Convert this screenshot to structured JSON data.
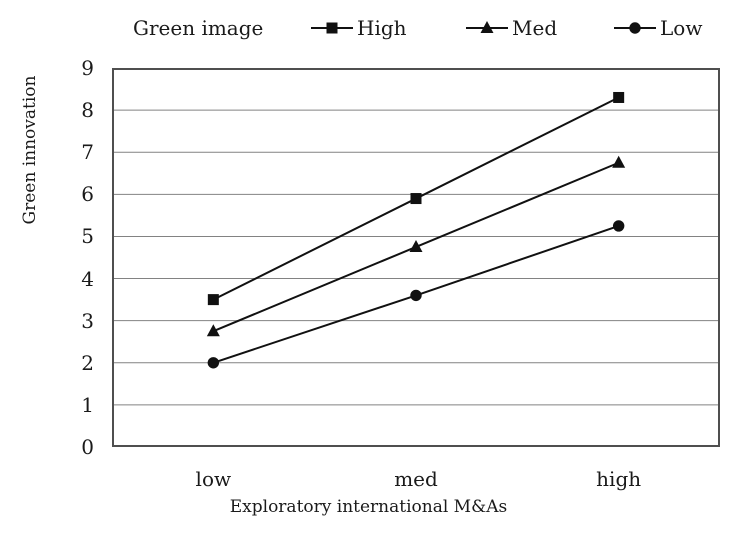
{
  "chart_data": {
    "type": "line",
    "title": "Green image",
    "categories": [
      "low",
      "med",
      "high"
    ],
    "series": [
      {
        "name": "High",
        "marker": "square",
        "values": [
          3.5,
          5.9,
          8.3
        ]
      },
      {
        "name": "Med",
        "marker": "triangle",
        "values": [
          2.75,
          4.75,
          6.75
        ]
      },
      {
        "name": "Low",
        "marker": "circle",
        "values": [
          2.0,
          3.6,
          5.25
        ]
      }
    ],
    "xlabel": "Exploratory international M&As",
    "ylabel": "Green innovation",
    "ylim": [
      0,
      9
    ],
    "y_ticks": [
      0,
      1,
      2,
      3,
      4,
      5,
      6,
      7,
      8,
      9
    ],
    "grid": "horizontal",
    "legend_position": "top",
    "colors": {
      "line": "#111111",
      "grid": "#828282",
      "border": "#4f4f4f",
      "text": "#1a1a1a",
      "background": "#ffffff"
    }
  }
}
